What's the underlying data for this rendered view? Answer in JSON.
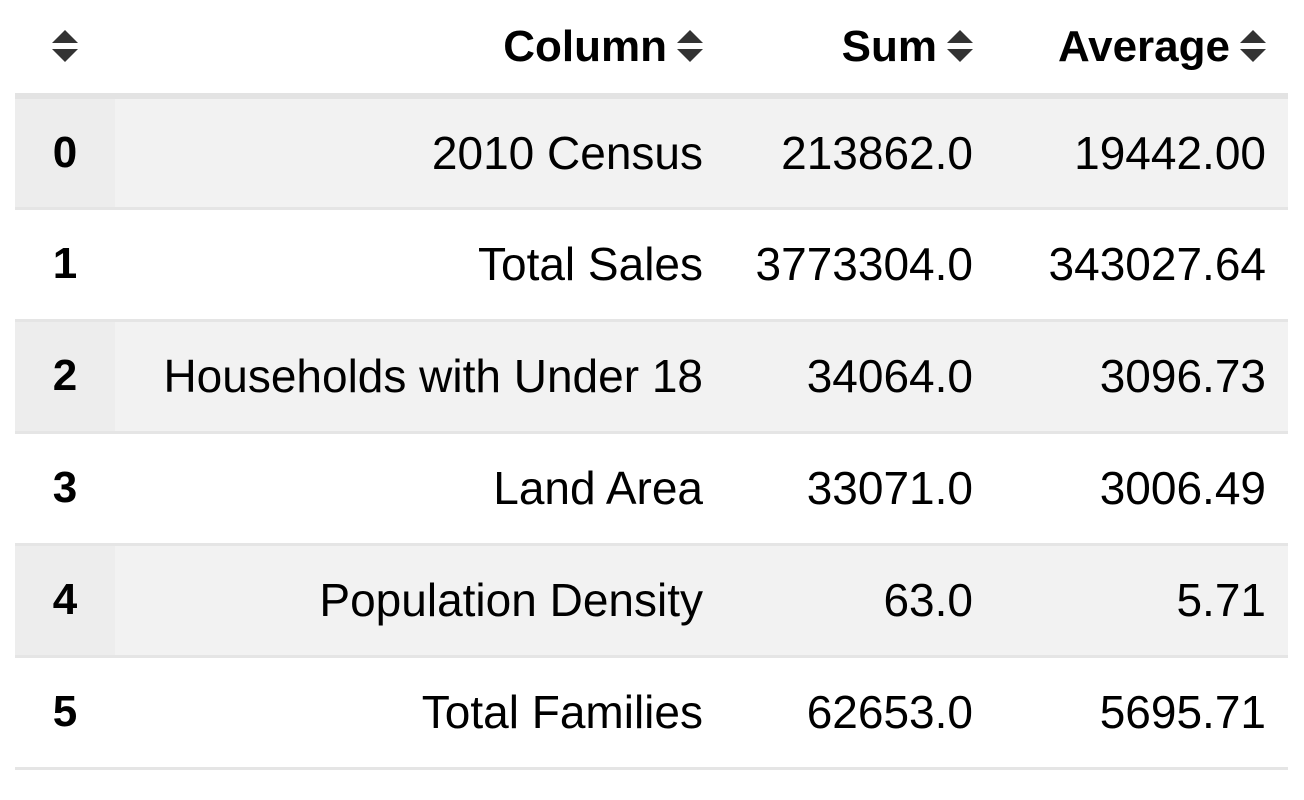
{
  "table": {
    "header": {
      "index_label": "",
      "column_label": "Column",
      "sum_label": "Sum",
      "average_label": "Average",
      "sort_icon": "sort-up-down-icon"
    },
    "rows": [
      {
        "index": "0",
        "column": "2010 Census",
        "sum": "213862.0",
        "average": "19442.00"
      },
      {
        "index": "1",
        "column": "Total Sales",
        "sum": "3773304.0",
        "average": "343027.64"
      },
      {
        "index": "2",
        "column": "Households with Under 18",
        "sum": "34064.0",
        "average": "3096.73"
      },
      {
        "index": "3",
        "column": "Land Area",
        "sum": "33071.0",
        "average": "3006.49"
      },
      {
        "index": "4",
        "column": "Population Density",
        "sum": "63.0",
        "average": "5.71"
      },
      {
        "index": "5",
        "column": "Total Families",
        "sum": "62653.0",
        "average": "5695.71"
      }
    ]
  },
  "colors": {
    "striped_row": "#f2f2f2",
    "divider": "#e5e5e5",
    "sort_icon": "#333333"
  }
}
